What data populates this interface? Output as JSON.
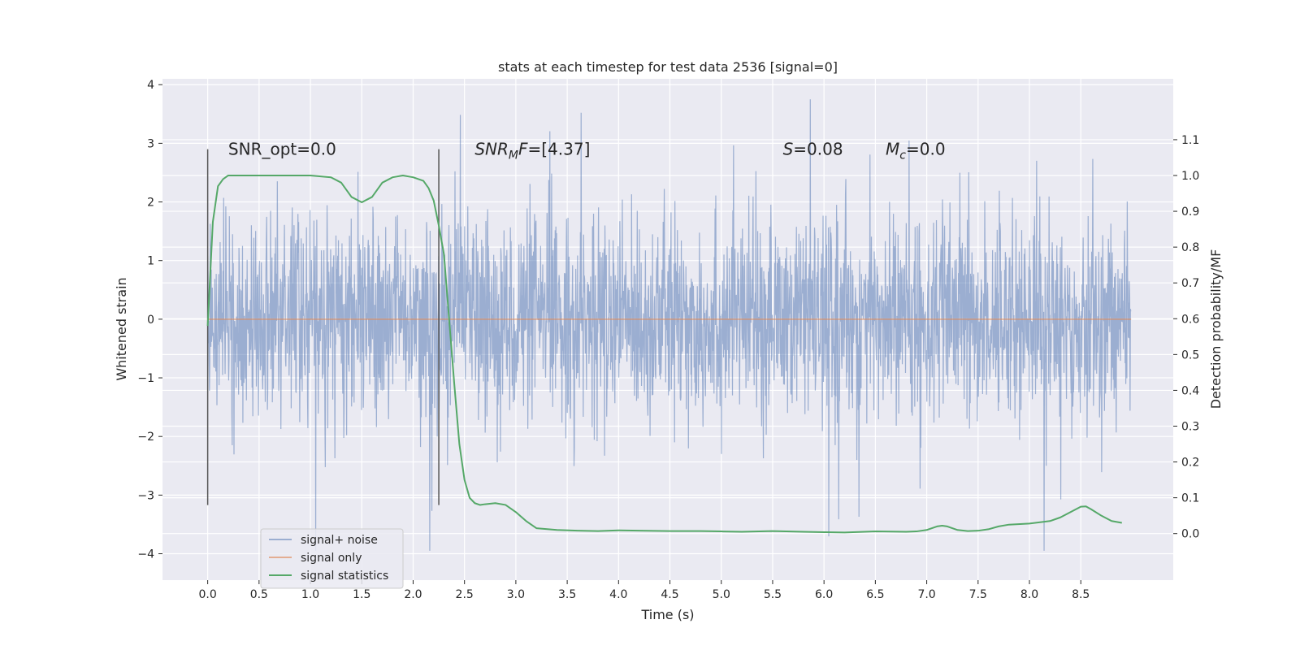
{
  "chart_data": {
    "type": "line",
    "title": "stats at each timestep for test data 2536 [signal=0]",
    "xlabel": "Time (s)",
    "ylabel": "Whitened strain",
    "y2label": "Detection probability/MF",
    "xlim": [
      -0.44,
      9.4
    ],
    "ylim": [
      -4.45,
      4.1
    ],
    "y2lim": [
      -0.13,
      1.27
    ],
    "xticks": [
      0.0,
      0.5,
      1.0,
      1.5,
      2.0,
      2.5,
      3.0,
      3.5,
      4.0,
      4.5,
      5.0,
      5.5,
      6.0,
      6.5,
      7.0,
      7.5,
      8.0,
      8.5
    ],
    "xtick_labels": [
      "0.0",
      "0.5",
      "1.0",
      "1.5",
      "2.0",
      "2.5",
      "3.0",
      "3.5",
      "4.0",
      "4.5",
      "5.0",
      "5.5",
      "6.0",
      "6.5",
      "7.0",
      "7.5",
      "8.0",
      "8.5"
    ],
    "yticks": [
      -4,
      -3,
      -2,
      -1,
      0,
      1,
      2,
      3,
      4
    ],
    "ytick_labels": [
      "−4",
      "−3",
      "−2",
      "−1",
      "0",
      "1",
      "2",
      "3",
      "4"
    ],
    "y2ticks": [
      0.0,
      0.1,
      0.2,
      0.3,
      0.4,
      0.5,
      0.6,
      0.7,
      0.8,
      0.9,
      1.0,
      1.1
    ],
    "y2tick_labels": [
      "0.0",
      "0.1",
      "0.2",
      "0.3",
      "0.4",
      "0.5",
      "0.6",
      "0.7",
      "0.8",
      "0.9",
      "1.0",
      "1.1"
    ],
    "grid": true,
    "legend_position": "lower-left",
    "colors": {
      "noise": "#4c72b0",
      "signal": "#dd8452",
      "stats": "#55a868",
      "vlines": "#555555",
      "background": "#eaeaf2",
      "grid": "#ffffff"
    },
    "series": [
      {
        "name": "signal+ noise",
        "kind": "noise",
        "x_range": [
          0.0,
          8.99
        ],
        "note_envelope_max": 3.75,
        "note_envelope_min": -3.95
      },
      {
        "name": "signal only",
        "kind": "flat",
        "x": [
          0.0,
          8.99
        ],
        "y": [
          0.0,
          0.0
        ]
      },
      {
        "name": "signal statistics",
        "kind": "line",
        "axis": "right",
        "x": [
          0.0,
          0.05,
          0.1,
          0.15,
          0.2,
          0.3,
          0.5,
          0.8,
          1.0,
          1.2,
          1.3,
          1.4,
          1.5,
          1.6,
          1.7,
          1.8,
          1.9,
          2.0,
          2.1,
          2.15,
          2.2,
          2.25,
          2.3,
          2.35,
          2.4,
          2.45,
          2.5,
          2.55,
          2.6,
          2.65,
          2.7,
          2.8,
          2.9,
          3.0,
          3.1,
          3.2,
          3.4,
          3.6,
          3.8,
          4.0,
          4.2,
          4.5,
          4.8,
          5.0,
          5.2,
          5.5,
          5.8,
          6.0,
          6.2,
          6.5,
          6.8,
          6.9,
          7.0,
          7.1,
          7.15,
          7.2,
          7.3,
          7.4,
          7.5,
          7.6,
          7.7,
          7.8,
          8.0,
          8.2,
          8.3,
          8.4,
          8.5,
          8.55,
          8.6,
          8.7,
          8.8,
          8.9
        ],
        "y": [
          0.58,
          0.87,
          0.97,
          0.99,
          1.0,
          1.0,
          1.0,
          1.0,
          1.0,
          0.995,
          0.98,
          0.94,
          0.925,
          0.94,
          0.98,
          0.995,
          1.0,
          0.995,
          0.985,
          0.965,
          0.93,
          0.86,
          0.78,
          0.6,
          0.42,
          0.25,
          0.15,
          0.1,
          0.085,
          0.08,
          0.082,
          0.085,
          0.08,
          0.06,
          0.035,
          0.015,
          0.01,
          0.008,
          0.007,
          0.009,
          0.008,
          0.007,
          0.007,
          0.006,
          0.005,
          0.007,
          0.005,
          0.004,
          0.003,
          0.006,
          0.005,
          0.006,
          0.01,
          0.02,
          0.022,
          0.02,
          0.01,
          0.007,
          0.008,
          0.012,
          0.02,
          0.025,
          0.028,
          0.035,
          0.045,
          0.06,
          0.075,
          0.076,
          0.068,
          0.05,
          0.035,
          0.03
        ]
      }
    ],
    "vlines": [
      {
        "x": 0.0,
        "y_from": -3.17,
        "y_to": 2.9
      },
      {
        "x": 2.25,
        "y_from": -3.17,
        "y_to": 2.9
      }
    ],
    "annotations": [
      {
        "id": "snr-opt",
        "text": "SNR_opt=0.0",
        "x": 0.2,
        "y": 2.9
      },
      {
        "id": "snr-mf",
        "text": "=[4.37]",
        "x": 2.6,
        "y": 2.9,
        "prefix": "SNR",
        "sub": "M",
        "after": "F"
      },
      {
        "id": "s-value",
        "text": "=0.08",
        "x": 5.6,
        "y": 2.9,
        "prefix": "S"
      },
      {
        "id": "mc-value",
        "text": "=0.0",
        "x": 6.6,
        "y": 2.9,
        "prefix": "M",
        "sub": "c"
      }
    ]
  }
}
